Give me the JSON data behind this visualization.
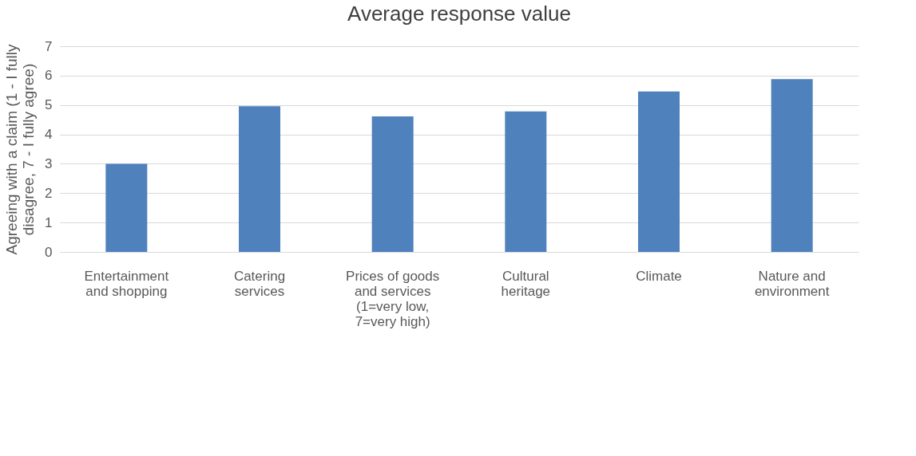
{
  "chart_data": {
    "type": "bar",
    "title": "Average response value",
    "ylabel": "Agreeing with a claim (1 - I fully disagree, 7 - I fully agree)",
    "categories": [
      "Entertainment and shopping",
      "Catering services",
      "Prices of goods and services (1=very low, 7=very high)",
      "Cultural heritage",
      "Climate",
      "Nature and environment"
    ],
    "values": [
      3.0,
      4.96,
      4.61,
      4.78,
      5.46,
      5.88
    ],
    "color": "#4f81bd",
    "ylim": [
      0,
      7
    ],
    "yticks": [
      0,
      1,
      2,
      3,
      4,
      5,
      6,
      7
    ],
    "grid": "y"
  }
}
